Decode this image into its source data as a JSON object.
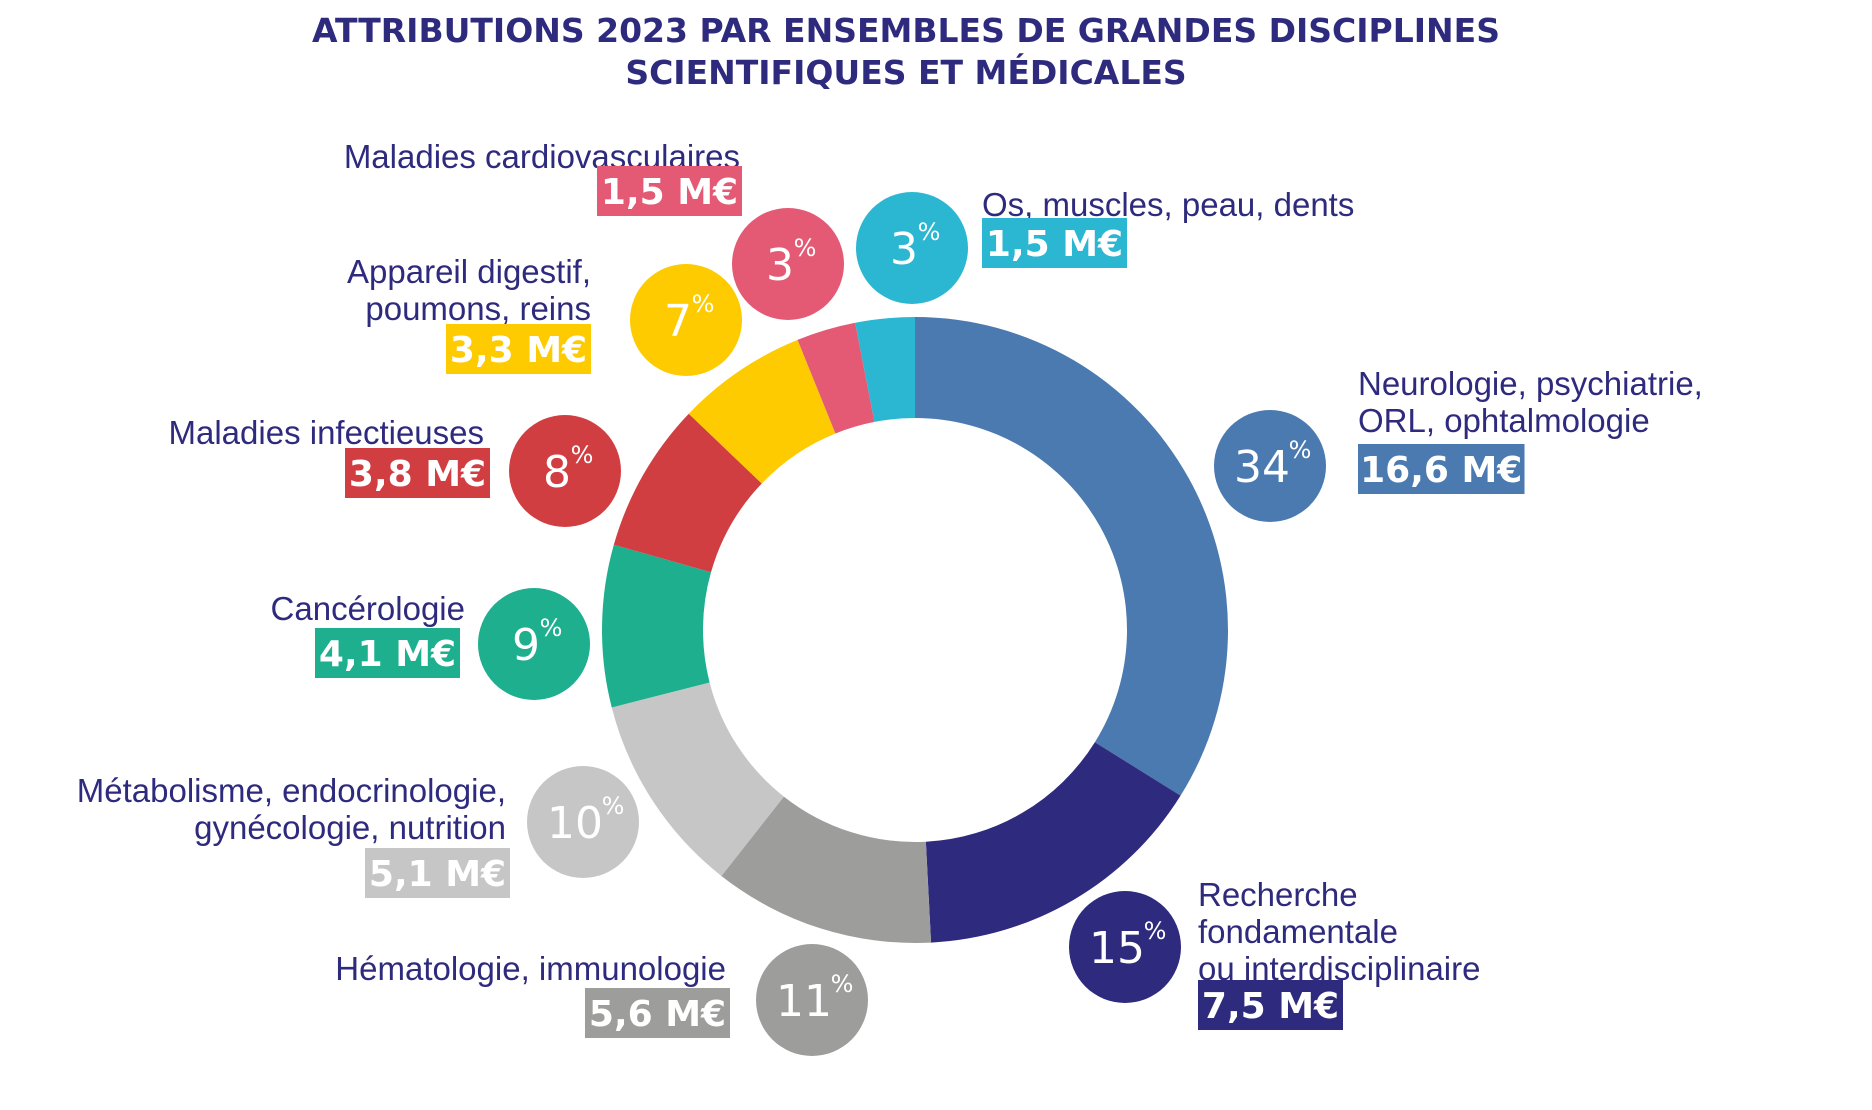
{
  "chart_data": {
    "type": "pie",
    "title_lines": [
      "ATTRIBUTIONS 2023 PAR ENSEMBLES DE GRANDES DISCIPLINES",
      "SCIENTIFIQUES ET MÉDICALES"
    ],
    "unit": "M€",
    "slices": [
      {
        "label_lines": [
          "Neurologie, psychiatrie,",
          "ORL, ophtalmologie"
        ],
        "percent": 34,
        "percent_text": "34",
        "amount": 16.6,
        "amount_text": "16,6 M€",
        "color": "#4a7ab0"
      },
      {
        "label_lines": [
          "Recherche",
          "fondamentale",
          "ou interdisciplinaire"
        ],
        "percent": 15,
        "percent_text": "15",
        "amount": 7.5,
        "amount_text": "7,5 M€",
        "color": "#2e2a7d"
      },
      {
        "label_lines": [
          "Hématologie, immunologie"
        ],
        "percent": 11,
        "percent_text": "11",
        "amount": 5.6,
        "amount_text": "5,6 M€",
        "color": "#9d9d9c"
      },
      {
        "label_lines": [
          "Métabolisme, endocrinologie,",
          "gynécologie, nutrition"
        ],
        "percent": 10,
        "percent_text": "10",
        "amount": 5.1,
        "amount_text": "5,1 M€",
        "color": "#c6c6c6"
      },
      {
        "label_lines": [
          "Cancérologie"
        ],
        "percent": 9,
        "percent_text": "9",
        "amount": 4.1,
        "amount_text": "4,1 M€",
        "color": "#1eaf8e"
      },
      {
        "label_lines": [
          "Maladies infectieuses"
        ],
        "percent": 8,
        "percent_text": "8",
        "amount": 3.8,
        "amount_text": "3,8 M€",
        "color": "#d13e42"
      },
      {
        "label_lines": [
          "Appareil digestif,",
          "poumons, reins"
        ],
        "percent": 7,
        "percent_text": "7",
        "amount": 3.3,
        "amount_text": "3,3 M€",
        "color": "#fecb00"
      },
      {
        "label_lines": [
          "Maladies cardiovasculaires"
        ],
        "percent": 3,
        "percent_text": "3",
        "amount": 1.5,
        "amount_text": "1,5 M€",
        "color": "#e45a74"
      },
      {
        "label_lines": [
          "Os, muscles, peau, dents"
        ],
        "percent": 3,
        "percent_text": "3",
        "amount": 1.5,
        "amount_text": "1,5 M€",
        "color": "#2bb7d1"
      }
    ],
    "percent_symbol": "%"
  }
}
